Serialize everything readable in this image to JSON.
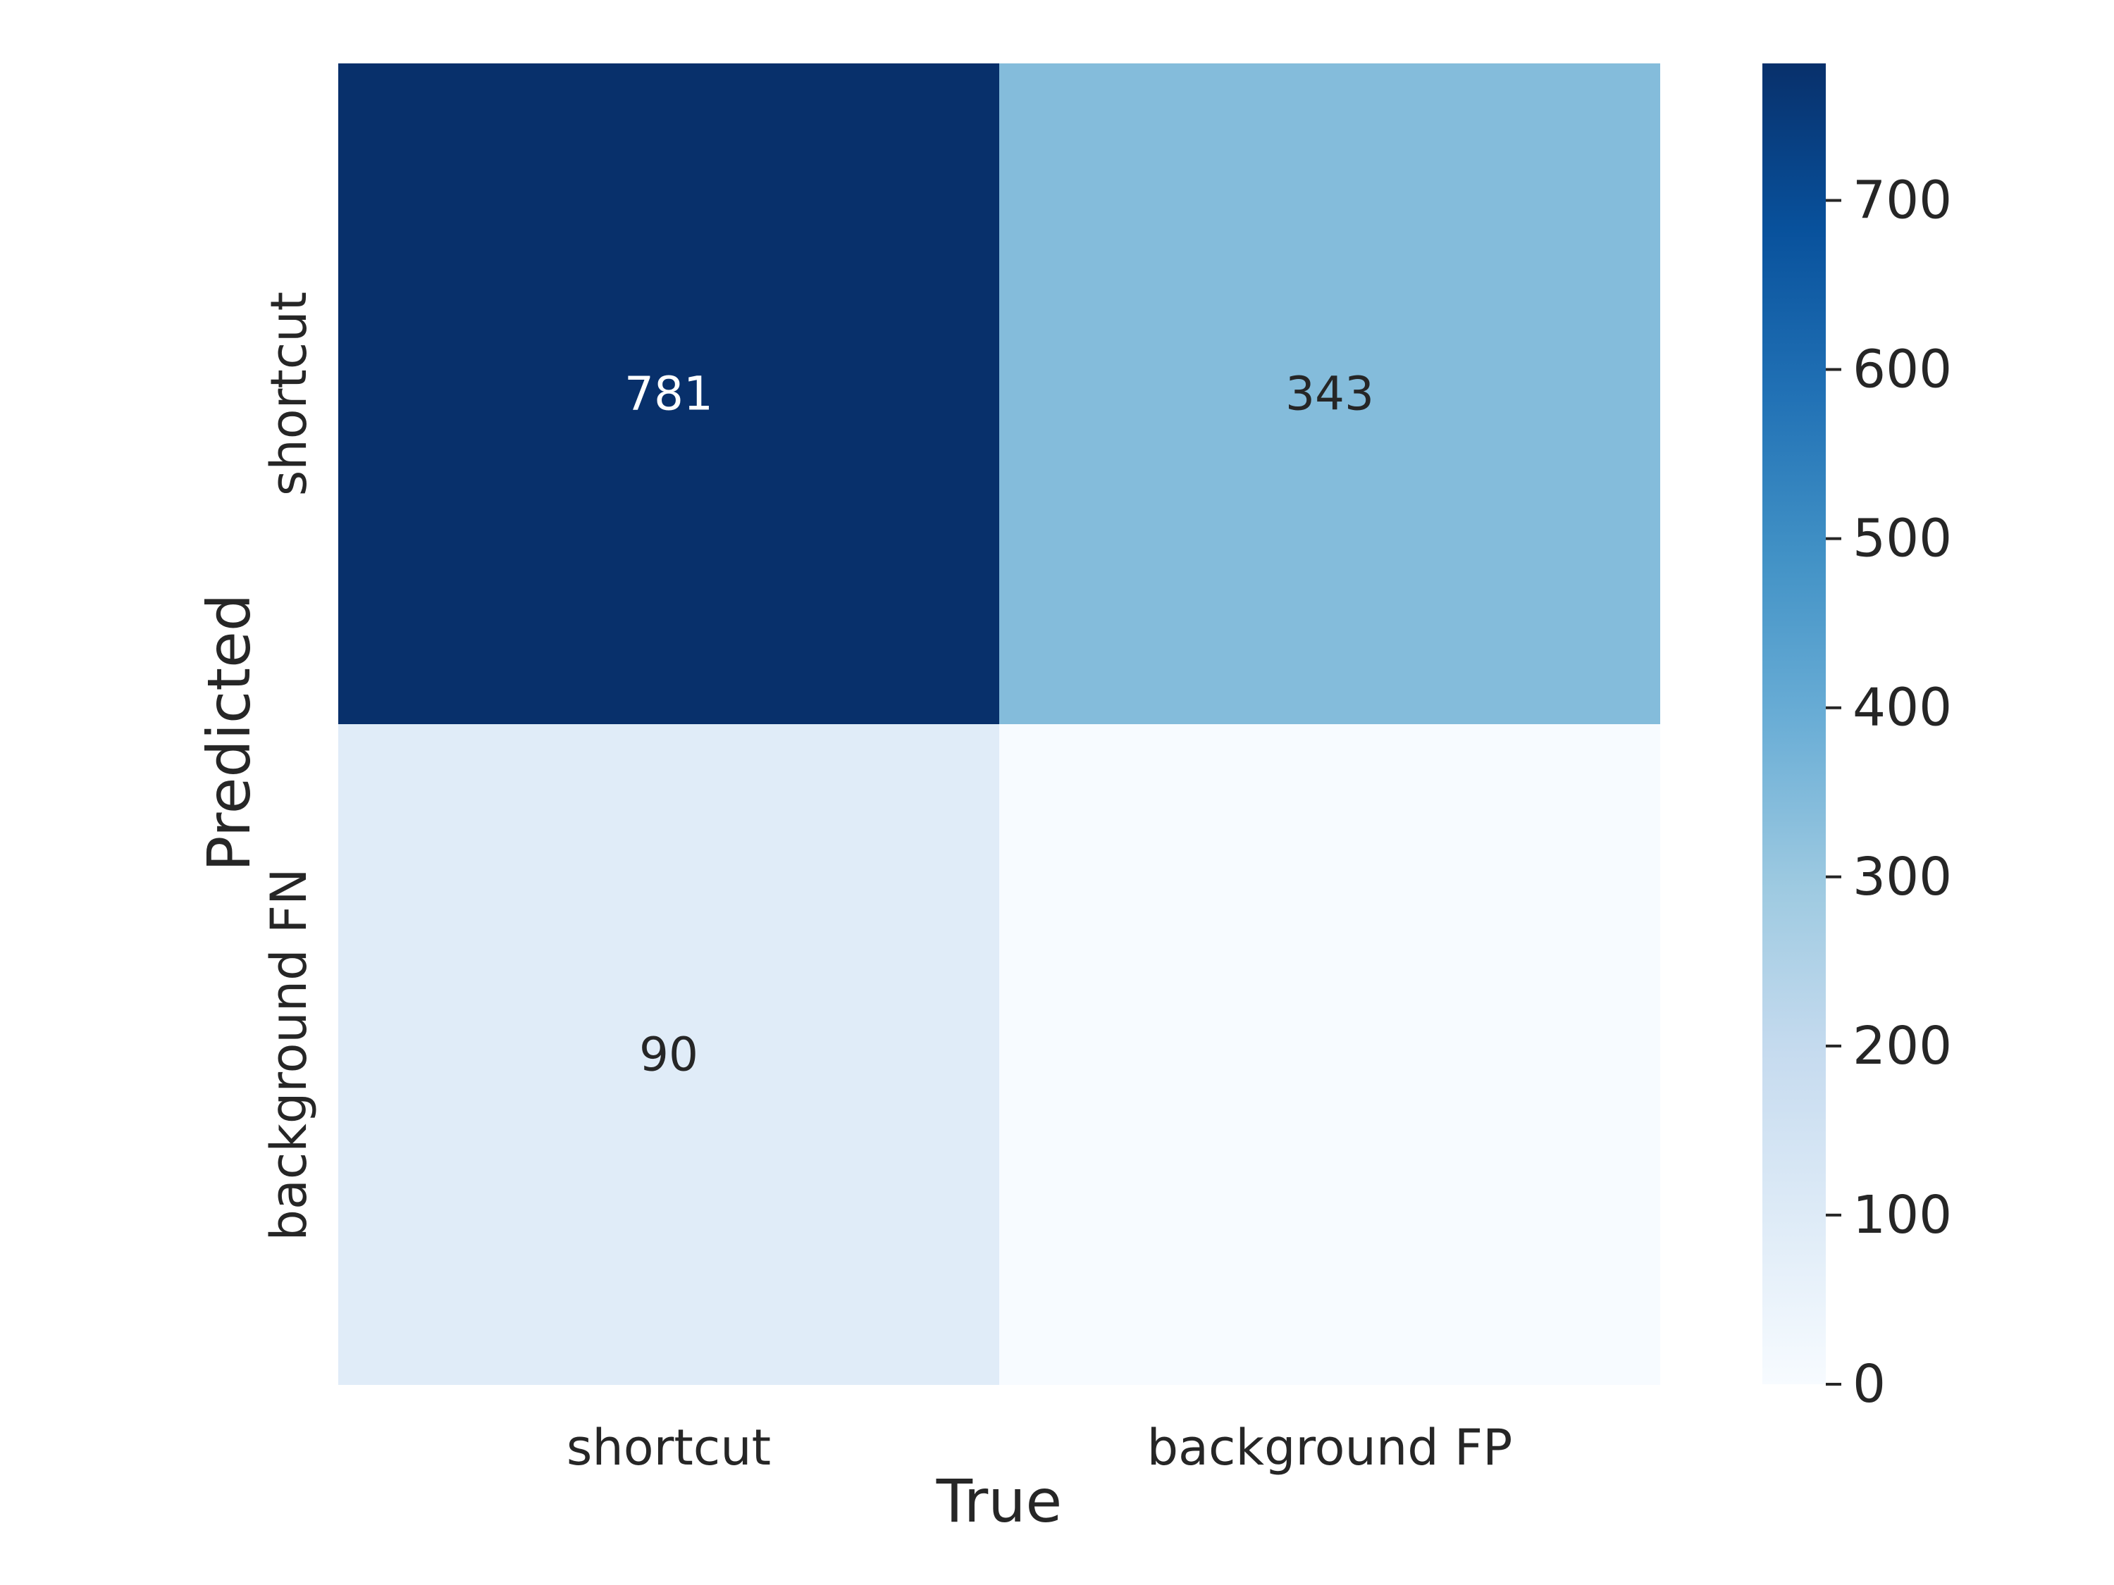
{
  "chart_data": {
    "type": "heatmap",
    "title": "",
    "xlabel": "True",
    "ylabel": "Predicted",
    "x_categories": [
      "shortcut",
      "background FP"
    ],
    "y_categories": [
      "shortcut",
      "background FN"
    ],
    "cells": [
      {
        "row": 0,
        "col": 0,
        "value": 781,
        "label": "781"
      },
      {
        "row": 0,
        "col": 1,
        "value": 343,
        "label": "343"
      },
      {
        "row": 1,
        "col": 0,
        "value": 90,
        "label": "90"
      },
      {
        "row": 1,
        "col": 1,
        "value": 0,
        "label": ""
      }
    ],
    "colormap": "Blues",
    "colorbar": {
      "range": [
        0,
        781
      ],
      "ticks": [
        0,
        100,
        200,
        300,
        400,
        500,
        600,
        700
      ],
      "tick_labels": [
        "0",
        "100",
        "200",
        "300",
        "400",
        "500",
        "600",
        "700"
      ],
      "placement": "right"
    },
    "grid": false
  }
}
